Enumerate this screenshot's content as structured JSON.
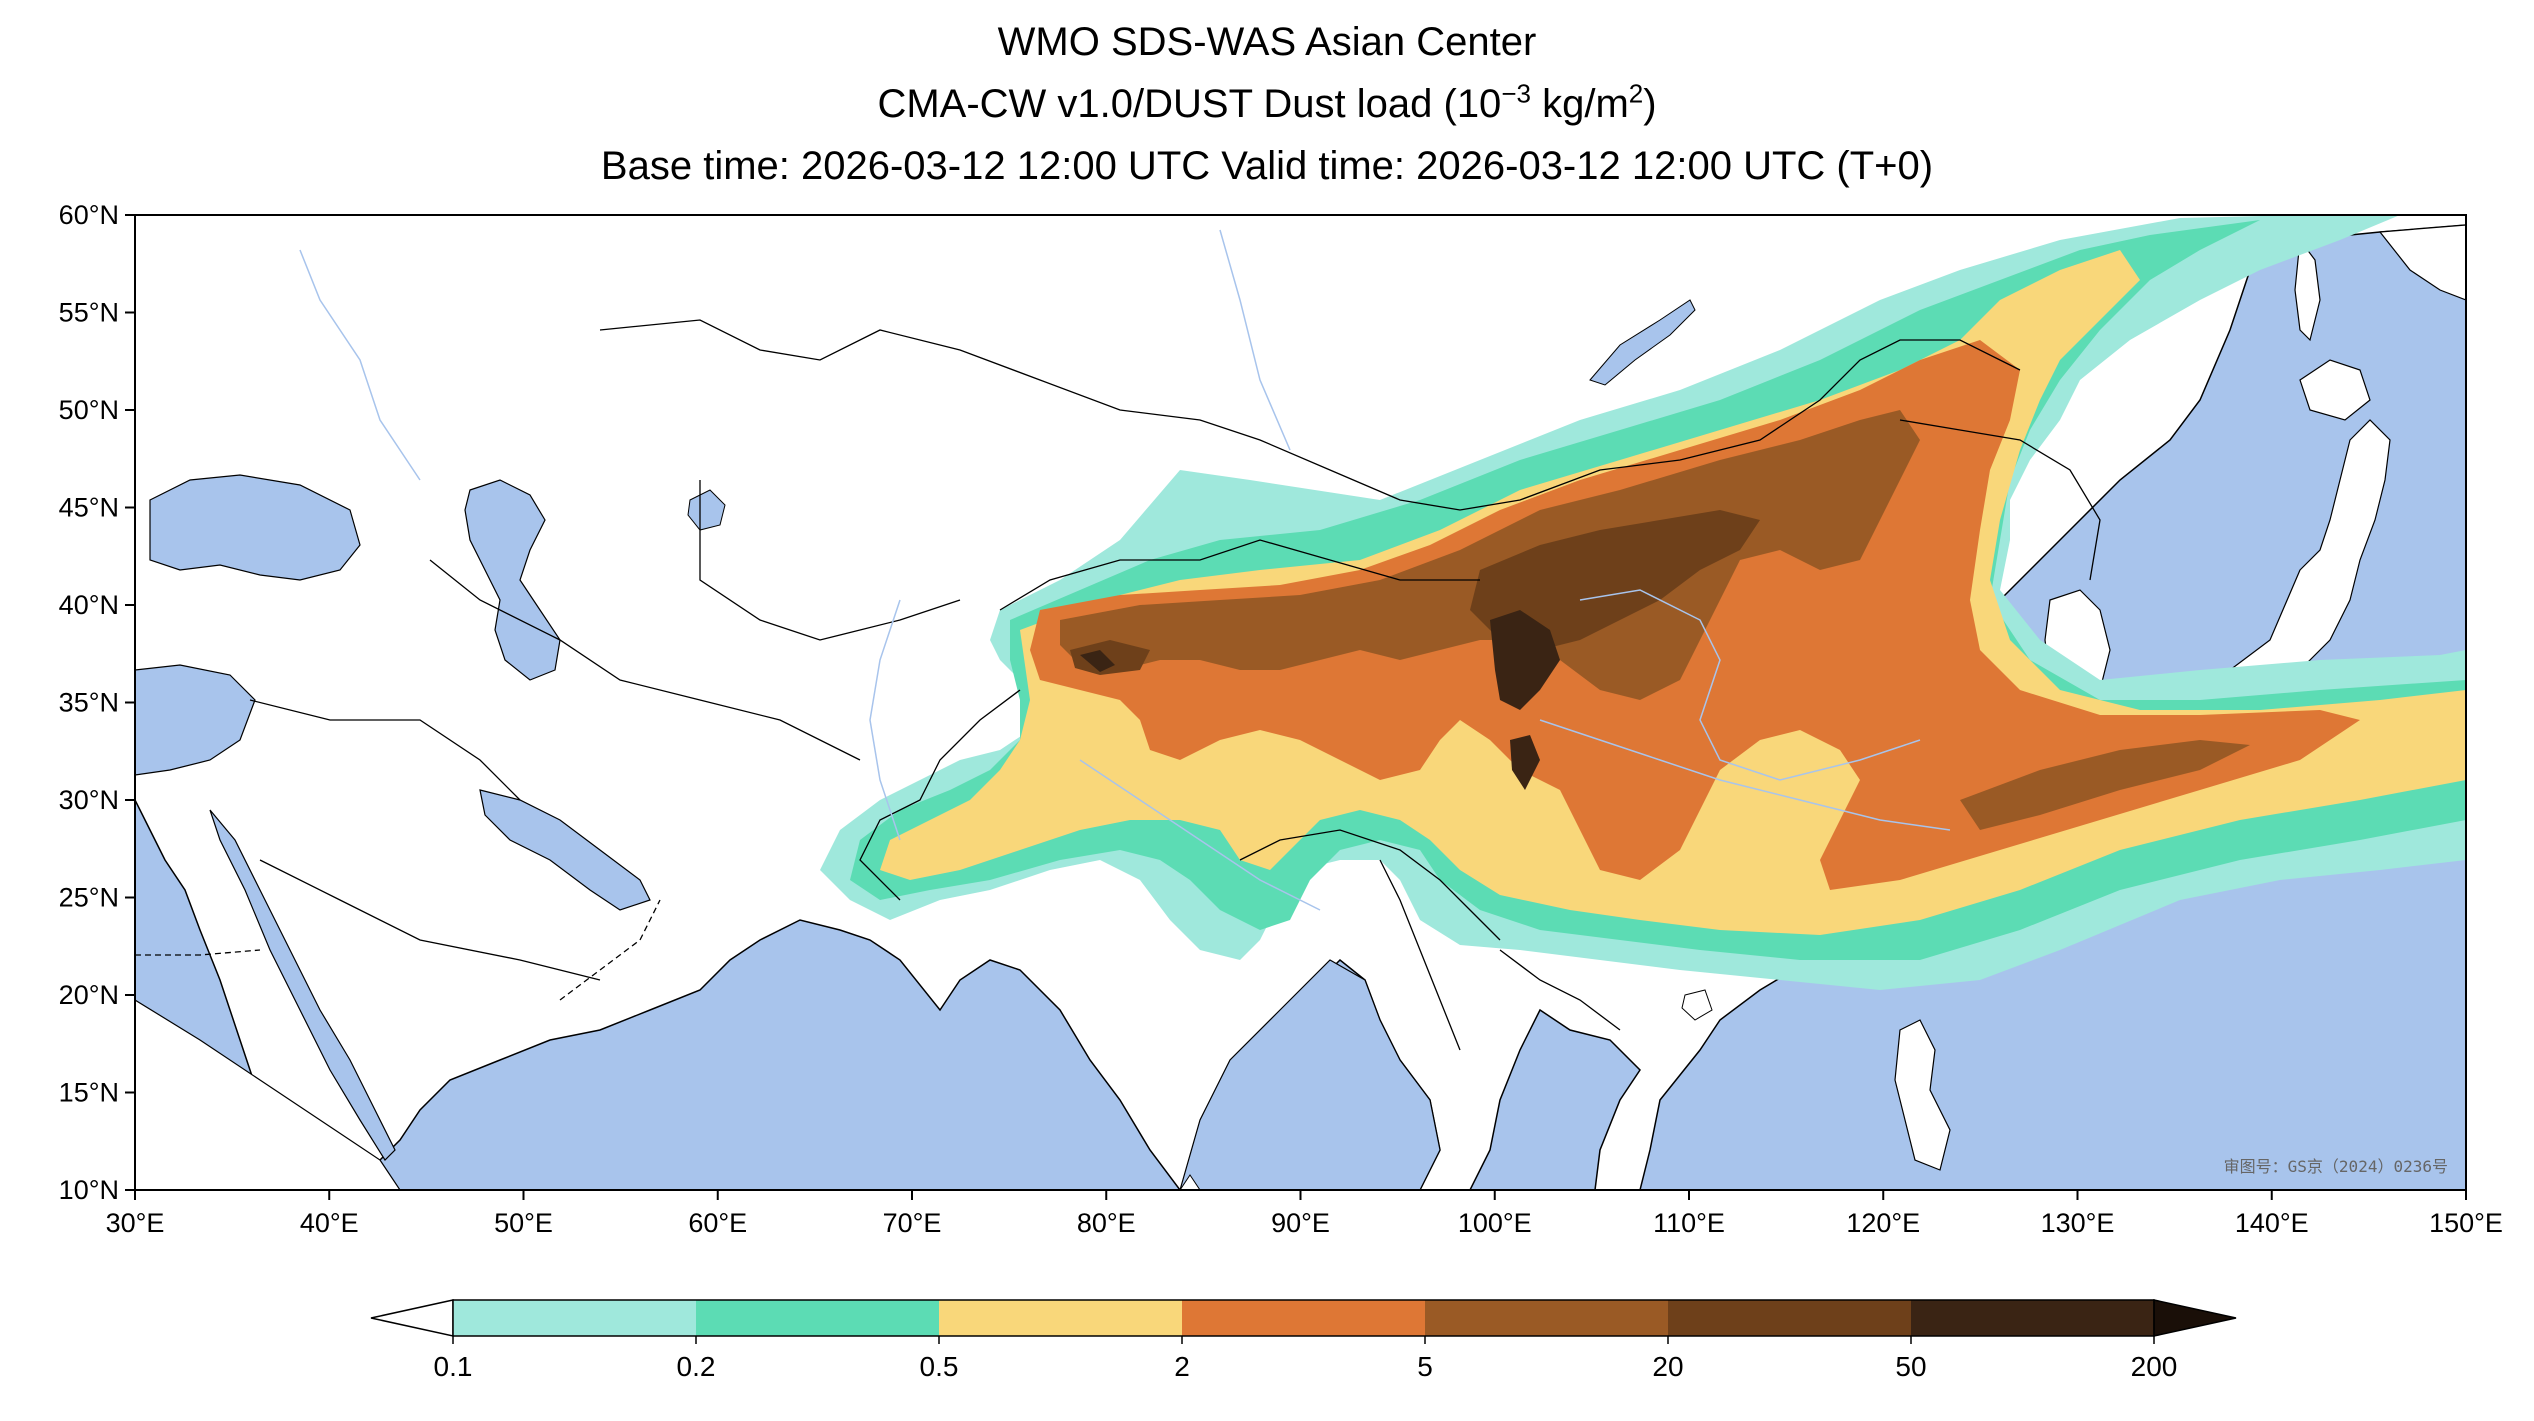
{
  "title": {
    "line1": "WMO SDS-WAS Asian Center",
    "line2_prefix": "CMA-CW v1.0/DUST Dust load (10",
    "line2_exp": "−3",
    "line2_mid": " kg/m",
    "line2_exp2": "2",
    "line2_suffix": ")",
    "line3": "Base time: 2026-03-12 12:00 UTC Valid time: 2026-03-12 12:00 UTC (T+0)"
  },
  "axes": {
    "lon_ticks": [
      "30°E",
      "40°E",
      "50°E",
      "60°E",
      "70°E",
      "80°E",
      "90°E",
      "100°E",
      "110°E",
      "120°E",
      "130°E",
      "140°E",
      "150°E"
    ],
    "lat_ticks": [
      "60°N",
      "55°N",
      "50°N",
      "45°N",
      "40°N",
      "35°N",
      "30°N",
      "25°N",
      "20°N",
      "15°N",
      "10°N"
    ],
    "lon_range": [
      30,
      150
    ],
    "lat_range": [
      10,
      60
    ]
  },
  "colorbar": {
    "levels": [
      "0.1",
      "0.2",
      "0.5",
      "2",
      "5",
      "20",
      "50",
      "200"
    ],
    "colors": [
      "#9fe8dc",
      "#5cdcb4",
      "#f9d77a",
      "#de7735",
      "#9a5a25",
      "#6e401a",
      "#3a2414"
    ],
    "extend": "both"
  },
  "watermark": "审图号：GS京（2024）0236号",
  "colors": {
    "ocean": "#a8c4ec",
    "land": "#ffffff",
    "border": "#000000",
    "river": "#a8c4ec"
  }
}
